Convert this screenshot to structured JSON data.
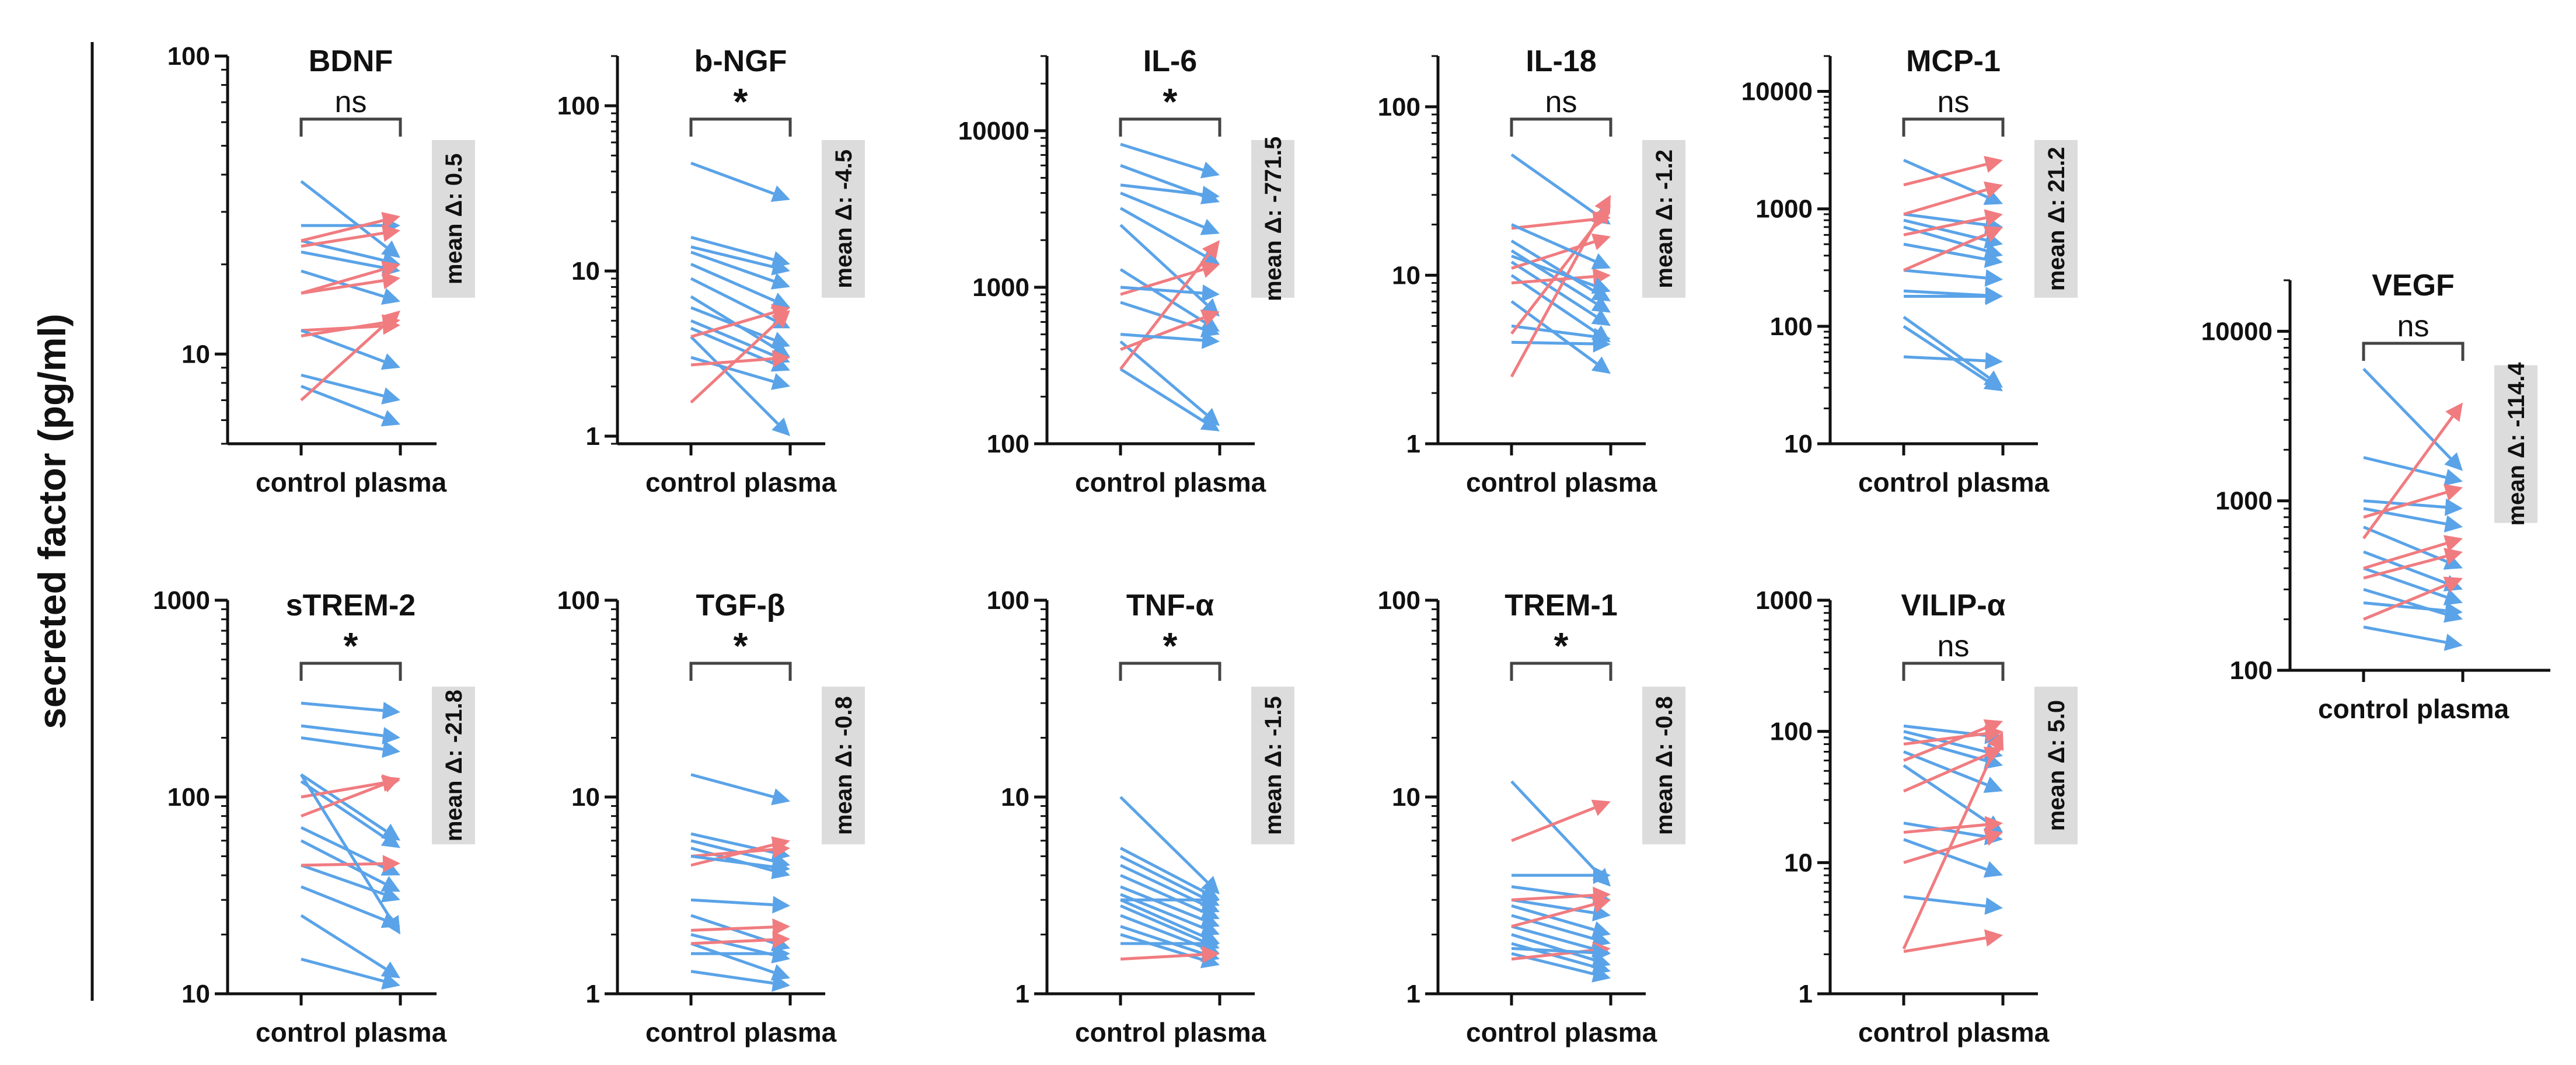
{
  "figure": {
    "y_axis_title": "secreted factor (pg/ml)"
  },
  "colors": {
    "decrease": "#5aa3e8",
    "increase": "#f07c80",
    "axis": "#111111",
    "delta_box": "#dcdcdc",
    "bracket": "#444444"
  },
  "chart_data": [
    {
      "type": "line",
      "title": "BDNF",
      "significance": "ns",
      "mean_delta_label": "mean Δ: 0.5",
      "categories": [
        "control",
        "plasma"
      ],
      "yscale": "log",
      "ylim": [
        5,
        100
      ],
      "yticks": [
        {
          "v": 10,
          "label": "10"
        },
        {
          "v": 100,
          "label": "100"
        }
      ],
      "pairs": [
        [
          38,
          21
        ],
        [
          24,
          20
        ],
        [
          22,
          19
        ],
        [
          19,
          15
        ],
        [
          12,
          12.5
        ],
        [
          12,
          9
        ],
        [
          8.5,
          7
        ],
        [
          7.8,
          5.8
        ],
        [
          7,
          14
        ],
        [
          27,
          27
        ],
        [
          24,
          29
        ],
        [
          16,
          20
        ],
        [
          11.5,
          13
        ],
        [
          16,
          18
        ],
        [
          23,
          26
        ]
      ]
    },
    {
      "type": "line",
      "title": "b-NGF",
      "significance": "*",
      "mean_delta_label": "mean Δ: -4.5",
      "categories": [
        "control",
        "plasma"
      ],
      "yscale": "log",
      "ylim": [
        0.9,
        200
      ],
      "yticks": [
        {
          "v": 1,
          "label": "1"
        },
        {
          "v": 10,
          "label": "10"
        },
        {
          "v": 100,
          "label": "100"
        }
      ],
      "pairs": [
        [
          45,
          27
        ],
        [
          16,
          11
        ],
        [
          14,
          10
        ],
        [
          13,
          8
        ],
        [
          11,
          6
        ],
        [
          9,
          4.5
        ],
        [
          7,
          3
        ],
        [
          6,
          3.5
        ],
        [
          5,
          2.8
        ],
        [
          4.5,
          2.5
        ],
        [
          4,
          1
        ],
        [
          3,
          2
        ],
        [
          1.6,
          5.8
        ],
        [
          2.7,
          3
        ],
        [
          4,
          6
        ]
      ]
    },
    {
      "type": "line",
      "title": "IL-6",
      "significance": "*",
      "mean_delta_label": "mean Δ: -771.5",
      "categories": [
        "control",
        "plasma"
      ],
      "yscale": "log",
      "ylim": [
        100,
        30000
      ],
      "yticks": [
        {
          "v": 100,
          "label": "100"
        },
        {
          "v": 1000,
          "label": "1000"
        },
        {
          "v": 10000,
          "label": "10000"
        }
      ],
      "pairs": [
        [
          8200,
          5200
        ],
        [
          6000,
          3500
        ],
        [
          4500,
          3800
        ],
        [
          4000,
          2200
        ],
        [
          3200,
          1400
        ],
        [
          2500,
          650
        ],
        [
          1300,
          520
        ],
        [
          900,
          1400
        ],
        [
          800,
          500
        ],
        [
          450,
          130
        ],
        [
          300,
          120
        ],
        [
          300,
          2000
        ],
        [
          400,
          700
        ],
        [
          500,
          450
        ],
        [
          1000,
          900
        ]
      ]
    },
    {
      "type": "line",
      "title": "IL-18",
      "significance": "ns",
      "mean_delta_label": "mean Δ: -1.2",
      "categories": [
        "control",
        "plasma"
      ],
      "yscale": "log",
      "ylim": [
        1,
        200
      ],
      "yticks": [
        {
          "v": 1,
          "label": "1"
        },
        {
          "v": 10,
          "label": "10"
        },
        {
          "v": 100,
          "label": "100"
        }
      ],
      "pairs": [
        [
          52,
          20
        ],
        [
          19,
          22
        ],
        [
          16,
          7
        ],
        [
          14,
          6
        ],
        [
          12,
          5
        ],
        [
          10,
          4
        ],
        [
          7,
          2.6
        ],
        [
          5,
          4.2
        ],
        [
          4,
          3.9
        ],
        [
          2.5,
          30
        ],
        [
          4.5,
          26
        ],
        [
          9,
          10
        ],
        [
          11,
          17
        ],
        [
          20,
          11
        ],
        [
          13,
          8
        ]
      ]
    },
    {
      "type": "line",
      "title": "MCP-1",
      "significance": "ns",
      "mean_delta_label": "mean Δ: 21.2",
      "categories": [
        "control",
        "plasma"
      ],
      "yscale": "log",
      "ylim": [
        10,
        20000
      ],
      "yticks": [
        {
          "v": 10,
          "label": "10"
        },
        {
          "v": 100,
          "label": "100"
        },
        {
          "v": 1000,
          "label": "1000"
        },
        {
          "v": 10000,
          "label": "10000"
        }
      ],
      "pairs": [
        [
          2600,
          1100
        ],
        [
          900,
          700
        ],
        [
          800,
          500
        ],
        [
          700,
          400
        ],
        [
          500,
          350
        ],
        [
          300,
          250
        ],
        [
          200,
          180
        ],
        [
          120,
          30
        ],
        [
          100,
          28
        ],
        [
          55,
          50
        ],
        [
          1600,
          2600
        ],
        [
          900,
          1600
        ],
        [
          600,
          900
        ],
        [
          300,
          700
        ],
        [
          180,
          180
        ]
      ]
    },
    {
      "type": "line",
      "title": "VEGF",
      "significance": "ns",
      "mean_delta_label": "mean Δ: -114.4",
      "categories": [
        "control",
        "plasma"
      ],
      "yscale": "log",
      "ylim": [
        100,
        20000
      ],
      "yticks": [
        {
          "v": 100,
          "label": "100"
        },
        {
          "v": 1000,
          "label": "1000"
        },
        {
          "v": 10000,
          "label": "10000"
        }
      ],
      "pairs": [
        [
          6000,
          1500
        ],
        [
          1800,
          1300
        ],
        [
          1000,
          900
        ],
        [
          900,
          700
        ],
        [
          700,
          400
        ],
        [
          500,
          300
        ],
        [
          400,
          250
        ],
        [
          300,
          200
        ],
        [
          180,
          140
        ],
        [
          600,
          3800
        ],
        [
          800,
          1200
        ],
        [
          400,
          600
        ],
        [
          350,
          500
        ],
        [
          250,
          220
        ],
        [
          200,
          350
        ]
      ]
    },
    {
      "type": "line",
      "title": "sTREM-2",
      "significance": "*",
      "mean_delta_label": "mean Δ: -21.8",
      "categories": [
        "control",
        "plasma"
      ],
      "yscale": "log",
      "ylim": [
        10,
        1000
      ],
      "yticks": [
        {
          "v": 10,
          "label": "10"
        },
        {
          "v": 100,
          "label": "100"
        },
        {
          "v": 1000,
          "label": "1000"
        }
      ],
      "pairs": [
        [
          300,
          270
        ],
        [
          230,
          200
        ],
        [
          200,
          170
        ],
        [
          130,
          60
        ],
        [
          120,
          55
        ],
        [
          70,
          40
        ],
        [
          60,
          33
        ],
        [
          45,
          30
        ],
        [
          35,
          22
        ],
        [
          25,
          12
        ],
        [
          15,
          11
        ],
        [
          80,
          125
        ],
        [
          100,
          122
        ],
        [
          45,
          46
        ],
        [
          130,
          20
        ]
      ]
    },
    {
      "type": "line",
      "title": "TGF-β",
      "significance": "*",
      "mean_delta_label": "mean Δ: -0.8",
      "categories": [
        "control",
        "plasma"
      ],
      "yscale": "log",
      "ylim": [
        1,
        100
      ],
      "yticks": [
        {
          "v": 1,
          "label": "1"
        },
        {
          "v": 10,
          "label": "10"
        },
        {
          "v": 100,
          "label": "100"
        }
      ],
      "pairs": [
        [
          13,
          9.5
        ],
        [
          6.5,
          5
        ],
        [
          6,
          4.5
        ],
        [
          5.5,
          4
        ],
        [
          3,
          2.8
        ],
        [
          2.5,
          1.7
        ],
        [
          2,
          1.5
        ],
        [
          1.8,
          1.2
        ],
        [
          1.6,
          1.6
        ],
        [
          1.3,
          1.1
        ],
        [
          4.5,
          6
        ],
        [
          5,
          5.5
        ],
        [
          2.1,
          2.2
        ],
        [
          1.8,
          1.9
        ],
        [
          5,
          4.3
        ]
      ]
    },
    {
      "type": "line",
      "title": "TNF-α",
      "significance": "*",
      "mean_delta_label": "mean Δ: -1.5",
      "categories": [
        "control",
        "plasma"
      ],
      "yscale": "log",
      "ylim": [
        1,
        100
      ],
      "yticks": [
        {
          "v": 1,
          "label": "1"
        },
        {
          "v": 10,
          "label": "10"
        },
        {
          "v": 100,
          "label": "100"
        }
      ],
      "pairs": [
        [
          10,
          3.2
        ],
        [
          5.5,
          3
        ],
        [
          5,
          2.8
        ],
        [
          4.5,
          2.6
        ],
        [
          4,
          2.4
        ],
        [
          3.5,
          2.2
        ],
        [
          3.2,
          2
        ],
        [
          3,
          1.8
        ],
        [
          2.8,
          1.7
        ],
        [
          2.5,
          1.6
        ],
        [
          2.2,
          1.5
        ],
        [
          2,
          1.4
        ],
        [
          1.8,
          1.8
        ],
        [
          1.5,
          1.6
        ],
        [
          3,
          3
        ]
      ]
    },
    {
      "type": "line",
      "title": "TREM-1",
      "significance": "*",
      "mean_delta_label": "mean Δ: -0.8",
      "categories": [
        "control",
        "plasma"
      ],
      "yscale": "log",
      "ylim": [
        1,
        100
      ],
      "yticks": [
        {
          "v": 1,
          "label": "1"
        },
        {
          "v": 10,
          "label": "10"
        },
        {
          "v": 100,
          "label": "100"
        }
      ],
      "pairs": [
        [
          12,
          3.5
        ],
        [
          4,
          4
        ],
        [
          3.5,
          3
        ],
        [
          3,
          2.5
        ],
        [
          2.8,
          2
        ],
        [
          2.5,
          1.8
        ],
        [
          2.2,
          1.6
        ],
        [
          2,
          1.4
        ],
        [
          1.8,
          1.3
        ],
        [
          1.6,
          1.2
        ],
        [
          6,
          9.5
        ],
        [
          2.2,
          3
        ],
        [
          1.5,
          1.7
        ],
        [
          1.7,
          1.6
        ],
        [
          3,
          3.2
        ]
      ]
    },
    {
      "type": "line",
      "title": "VILIP-α",
      "significance": "ns",
      "mean_delta_label": "mean Δ: 5.0",
      "categories": [
        "control",
        "plasma"
      ],
      "yscale": "log",
      "ylim": [
        1,
        1000
      ],
      "yticks": [
        {
          "v": 1,
          "label": "1"
        },
        {
          "v": 10,
          "label": "10"
        },
        {
          "v": 100,
          "label": "100"
        },
        {
          "v": 1000,
          "label": "1000"
        }
      ],
      "pairs": [
        [
          110,
          90
        ],
        [
          100,
          65
        ],
        [
          90,
          55
        ],
        [
          70,
          35
        ],
        [
          55,
          17
        ],
        [
          20,
          15
        ],
        [
          15,
          8
        ],
        [
          5.5,
          4.5
        ],
        [
          60,
          120
        ],
        [
          80,
          100
        ],
        [
          35,
          75
        ],
        [
          17,
          20
        ],
        [
          10,
          17
        ],
        [
          2.2,
          100
        ],
        [
          2.1,
          2.8
        ]
      ]
    }
  ]
}
